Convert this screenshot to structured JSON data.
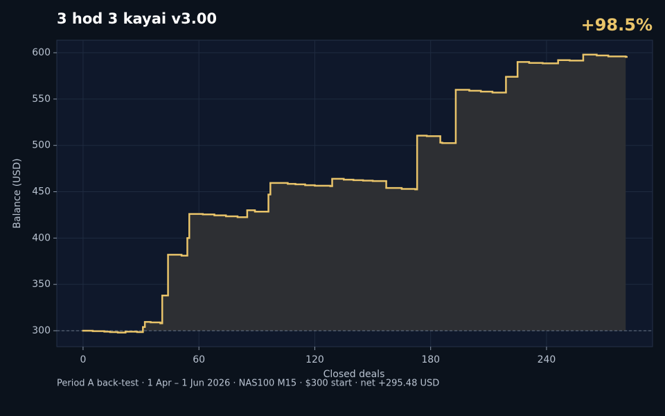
{
  "chart_data": {
    "type": "step",
    "title": "3 hod 3 kayai v3.00",
    "headline": "+98.5%",
    "footer": "Period A back-test  ·  1 Apr – 1 Jun 2026  ·  NAS100 M15  ·  $300 start  ·  net +295.48 USD",
    "xlabel": "Closed deals",
    "ylabel": "Balance (USD)",
    "x": [
      0,
      5,
      11,
      14,
      18,
      22,
      28,
      31,
      32,
      35,
      40,
      41,
      44,
      51,
      54,
      55,
      62,
      68,
      74,
      80,
      85,
      89,
      96,
      97,
      106,
      110,
      115,
      120,
      128,
      129,
      135,
      140,
      145,
      150,
      157,
      165,
      172,
      173,
      178,
      185,
      186,
      193,
      200,
      206,
      212,
      219,
      225,
      231,
      238,
      246,
      252,
      259,
      266,
      272,
      281
    ],
    "series": [
      {
        "name": "Balance",
        "color": "#e9c46a",
        "values": [
          300,
          299.5,
          299,
          298.5,
          298,
          299,
          298.5,
          304,
          309.5,
          309,
          308,
          338,
          382,
          381,
          400,
          426,
          425.5,
          424.5,
          423.5,
          422.5,
          430,
          428.5,
          447,
          459.5,
          458.5,
          458,
          457,
          456.5,
          456,
          464,
          463,
          462.5,
          462,
          461.5,
          454,
          453,
          452.5,
          510.5,
          510,
          503,
          502.5,
          560,
          559,
          558,
          557,
          574,
          590,
          589,
          588.5,
          592,
          591.5,
          598,
          597,
          596,
          595.5
        ]
      }
    ],
    "baseline": 300,
    "xlim": [
      -13.6,
      294.9
    ],
    "ylim": [
      282.8,
      613.5
    ],
    "xticks": [
      0,
      60,
      120,
      180,
      240
    ],
    "yticks": [
      300,
      350,
      400,
      450,
      500,
      550,
      600
    ],
    "grid": true
  }
}
